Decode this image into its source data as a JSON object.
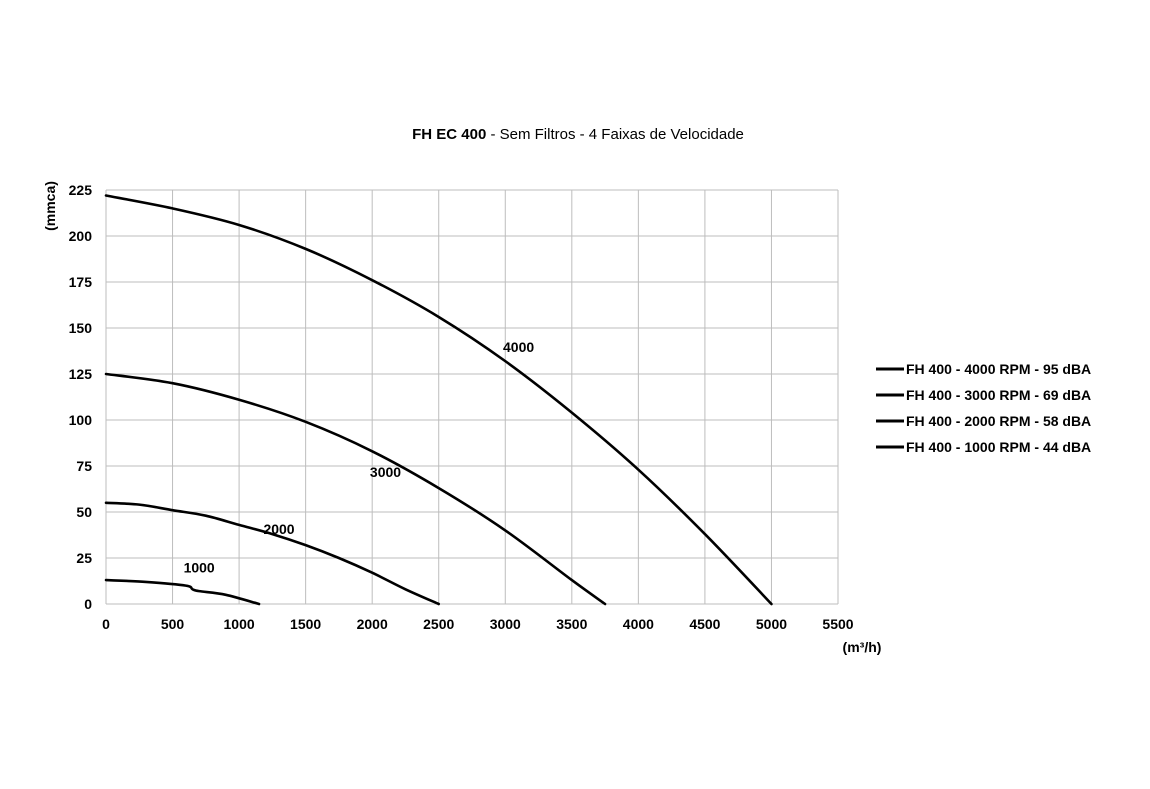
{
  "chart_data": {
    "type": "line",
    "title_bold": "FH EC 400",
    "title_rest": " - Sem Filtros - 4 Faixas de Velocidade",
    "xlabel": "(m³/h)",
    "ylabel": "(mmca)",
    "xlim": [
      0,
      5500
    ],
    "ylim": [
      0,
      225
    ],
    "xticks": [
      0,
      500,
      1000,
      1500,
      2000,
      2500,
      3000,
      3500,
      4000,
      4500,
      5000,
      5500
    ],
    "yticks": [
      0,
      25,
      50,
      75,
      100,
      125,
      150,
      175,
      200,
      225
    ],
    "grid": true,
    "legend_position": "right",
    "series": [
      {
        "name": "FH 400 - 4000 RPM - 95 dBA",
        "curve_label": "4000",
        "x": [
          0,
          500,
          1000,
          1500,
          2000,
          2500,
          3000,
          3500,
          4000,
          4500,
          5000
        ],
        "y": [
          222,
          215,
          206,
          193,
          176,
          156,
          132,
          104,
          73,
          38,
          0
        ]
      },
      {
        "name": "FH 400 - 3000 RPM - 69 dBA",
        "curve_label": "3000",
        "x": [
          0,
          500,
          1000,
          1500,
          2000,
          2500,
          3000,
          3500,
          3750
        ],
        "y": [
          125,
          120,
          111,
          99,
          83,
          63,
          40,
          13,
          0
        ]
      },
      {
        "name": "FH 400 - 2000 RPM - 58 dBA",
        "curve_label": "2000",
        "x": [
          0,
          250,
          500,
          750,
          1000,
          1250,
          1500,
          1750,
          2000,
          2250,
          2500
        ],
        "y": [
          55,
          54,
          51,
          48,
          43,
          38,
          32,
          25,
          17,
          8,
          0
        ]
      },
      {
        "name": "FH 400 - 1000 RPM - 44 dBA",
        "curve_label": "1000",
        "x": [
          0,
          300,
          600,
          650,
          700,
          900,
          1150
        ],
        "y": [
          13,
          12,
          10,
          8,
          7,
          5,
          0
        ]
      }
    ]
  }
}
